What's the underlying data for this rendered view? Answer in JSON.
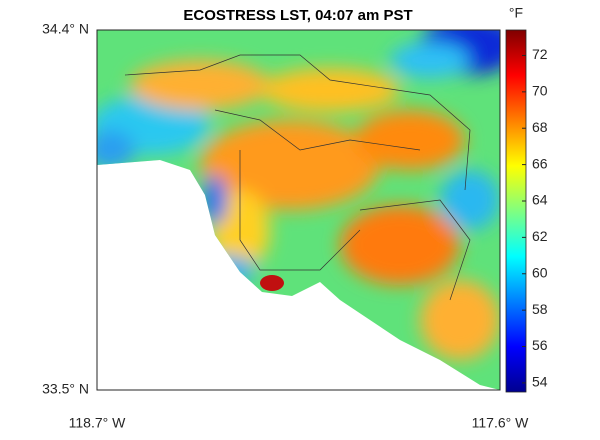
{
  "chart_data": {
    "type": "heatmap",
    "title": "ECOSTRESS LST, 04:07 am PST",
    "colorbar_label": "°F",
    "clim": [
      53.5,
      73.4
    ],
    "cticks": [
      54,
      56,
      58,
      60,
      62,
      64,
      66,
      68,
      70,
      72
    ],
    "xlim": [
      -118.7,
      -117.6
    ],
    "xticks": [
      {
        "value": -118.7,
        "label": "118.7° W"
      },
      {
        "value": -117.6,
        "label": "117.6° W"
      }
    ],
    "ylim": [
      33.5,
      34.4
    ],
    "yticks": [
      {
        "value": 33.5,
        "label": "33.5° N"
      },
      {
        "value": 34.4,
        "label": "34.4° N"
      }
    ]
  }
}
